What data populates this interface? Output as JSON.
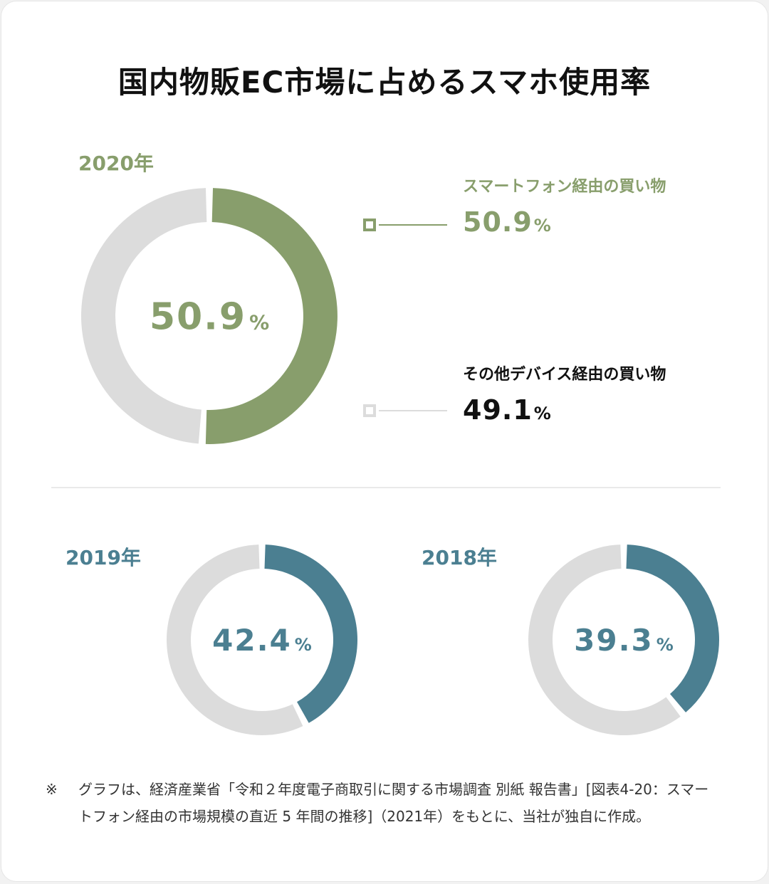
{
  "title": "国内物販EC市場に占めるスマホ使用率",
  "colors": {
    "green": "#889e6c",
    "teal": "#4b7f91",
    "track": "#dcdcdc",
    "text": "#111111"
  },
  "legend": {
    "smartphone_label": "スマートフォン経由の買い物",
    "smartphone_value": "50.9",
    "other_label": "その他デバイス経由の買い物",
    "other_value": "49.1",
    "unit": "%"
  },
  "charts": {
    "y2020": {
      "year_label": "2020年",
      "value_text": "50.9",
      "unit": "%"
    },
    "y2019": {
      "year_label": "2019年",
      "value_text": "42.4",
      "unit": "%"
    },
    "y2018": {
      "year_label": "2018年",
      "value_text": "39.3",
      "unit": "%"
    }
  },
  "chart_data": [
    {
      "type": "pie",
      "title": "2020年",
      "categories": [
        "スマートフォン経由の買い物",
        "その他デバイス経由の買い物"
      ],
      "values": [
        50.9,
        49.1
      ],
      "unit": "%"
    },
    {
      "type": "pie",
      "title": "2019年",
      "categories": [
        "スマートフォン経由の買い物",
        "その他デバイス経由の買い物"
      ],
      "values": [
        42.4,
        57.6
      ],
      "unit": "%"
    },
    {
      "type": "pie",
      "title": "2018年",
      "categories": [
        "スマートフォン経由の買い物",
        "その他デバイス経由の買い物"
      ],
      "values": [
        39.3,
        60.7
      ],
      "unit": "%"
    }
  ],
  "note": {
    "mark": "※",
    "text": "グラフは、経済産業省「令和２年度電子商取引に関する市場調査 別紙 報告書」[図表4-20：スマートフォン経由の市場規模の直近 5 年間の推移]（2021年）をもとに、当社が独自に作成。"
  }
}
